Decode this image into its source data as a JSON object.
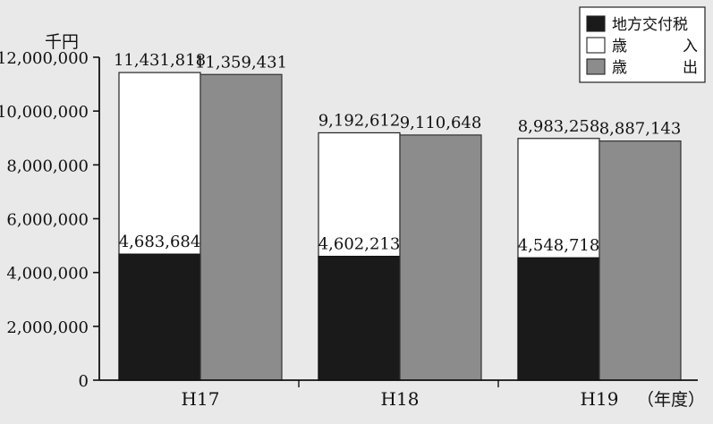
{
  "chart_data": {
    "type": "bar",
    "unit_label": "千円",
    "x_suffix": "（年度）",
    "categories": [
      "H17",
      "H18",
      "H19"
    ],
    "ylim": [
      0,
      12000000
    ],
    "yticks": [
      0,
      2000000,
      4000000,
      6000000,
      8000000,
      10000000,
      12000000
    ],
    "ytick_labels": [
      "0",
      "2,000,000",
      "4,000,000",
      "6,000,000",
      "8,000,000",
      "10,000,000",
      "12,000,000"
    ],
    "series": [
      {
        "name": "地方交付税",
        "values": [
          4683684,
          4602213,
          4548718
        ],
        "value_labels": [
          "4,683,684",
          "4,602,213",
          "4,548,718"
        ],
        "color": "#1a1a1a"
      },
      {
        "name": "歳入",
        "values": [
          11431818,
          9192612,
          8983258
        ],
        "value_labels": [
          "11,431,818",
          "9,192,612",
          "8,983,258"
        ],
        "color": "#ffffff"
      },
      {
        "name": "歳出",
        "values": [
          11359431,
          9110648,
          8887143
        ],
        "value_labels": [
          "11,359,431",
          "9,110,648",
          "8,887,143"
        ],
        "color": "#8c8c8c"
      }
    ],
    "legend": {
      "position": "top-right",
      "items": [
        {
          "label_parts": [
            "地方交付税"
          ],
          "color": "#1a1a1a"
        },
        {
          "label_parts": [
            "歳",
            "入"
          ],
          "color": "#ffffff"
        },
        {
          "label_parts": [
            "歳",
            "出"
          ],
          "color": "#8c8c8c"
        }
      ]
    },
    "grid": false
  }
}
